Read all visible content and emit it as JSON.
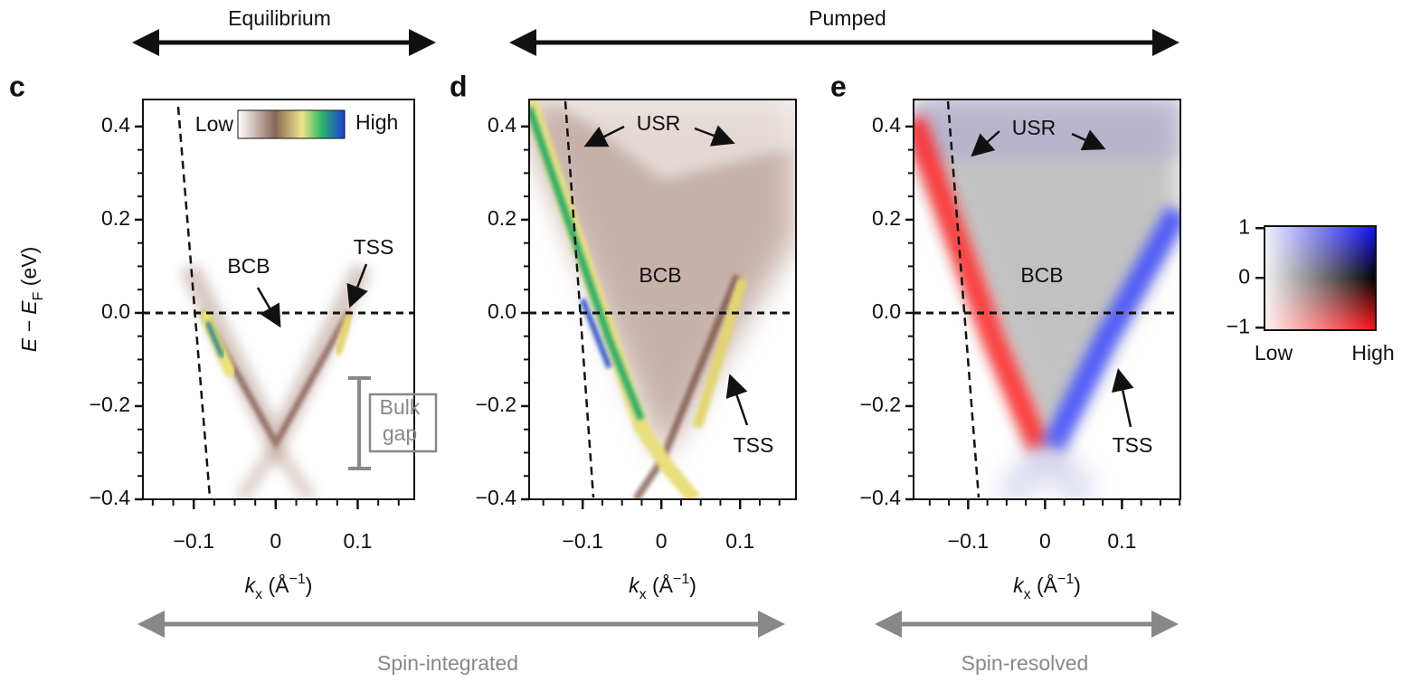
{
  "figure": {
    "top_labels": [
      "Equilibrium",
      "Pumped"
    ],
    "bottom_labels": [
      "Spin-integrated",
      "Spin-resolved"
    ]
  },
  "chart_data": [
    {
      "type": "image",
      "panel": "c",
      "xlim": [
        -0.162,
        0.169
      ],
      "xticks": [
        {
          "value": -0.1,
          "label": "−0.1"
        },
        0,
        0.1
      ],
      "ylim": [
        -0.4,
        0.458
      ],
      "yticks": [
        {
          "value": -0.4,
          "label": "−0.4"
        },
        {
          "value": -0.2,
          "label": "−0.2"
        },
        {
          "value": 0,
          "label": "0.0"
        },
        0.2,
        0.4
      ],
      "x_label": [
        "k",
        "x",
        " (Å",
        "−1",
        ")"
      ],
      "y_label": [
        "E − E",
        "F",
        " (eV)"
      ],
      "annotations": [
        "BCB",
        "TSS",
        "Bulk",
        "gap"
      ],
      "colorbar_labels": [
        "Low",
        "High"
      ]
    },
    {
      "type": "image",
      "panel": "d",
      "xlim": [
        -0.168,
        0.171
      ],
      "xticks": [
        {
          "value": -0.1,
          "label": "−0.1"
        },
        0,
        0.1
      ],
      "ylim": [
        -0.4,
        0.458
      ],
      "yticks": [
        {
          "value": -0.4,
          "label": "−0.4"
        },
        {
          "value": -0.2,
          "label": "−0.2"
        },
        {
          "value": 0,
          "label": "0.0"
        },
        0.2,
        0.4
      ],
      "x_label": [
        "k",
        "x",
        " (Å",
        "−1",
        ")"
      ],
      "annotations": [
        "USR",
        "BCB",
        "TSS"
      ]
    },
    {
      "type": "image",
      "panel": "e",
      "xlim": [
        -0.171,
        0.176
      ],
      "xticks": [
        {
          "value": -0.1,
          "label": "−0.1"
        },
        0,
        0.1
      ],
      "ylim": [
        -0.4,
        0.458
      ],
      "yticks": [
        {
          "value": -0.4,
          "label": "−0.4"
        },
        {
          "value": -0.2,
          "label": "−0.2"
        },
        {
          "value": 0,
          "label": "0.0"
        },
        0.2,
        0.4
      ],
      "x_label": [
        "k",
        "x",
        " (Å",
        "−1",
        ")"
      ],
      "annotations": [
        "USR",
        "BCB",
        "TSS"
      ]
    }
  ],
  "colorbar": {
    "ylim": [
      -1.05,
      1.04
    ],
    "yticks": [
      1,
      0,
      {
        "value": -1,
        "label": "−1"
      }
    ],
    "labels": [
      "Low",
      "High"
    ]
  }
}
